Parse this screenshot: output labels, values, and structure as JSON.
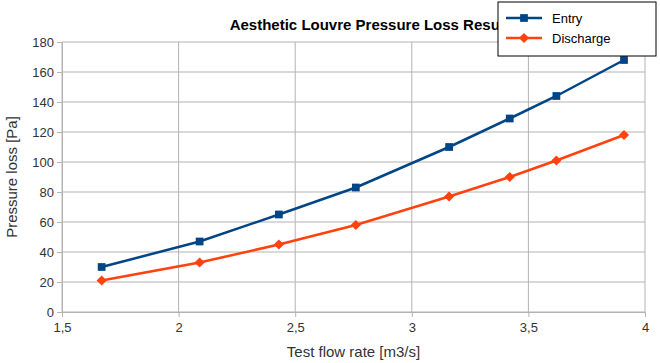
{
  "chart_data": {
    "type": "line",
    "title": "Aesthetic Louvre Pressure Loss Results",
    "x_label": "Test flow rate [m3/s]",
    "y_label": "Pressure loss [Pa]",
    "x": [
      1.67,
      2.09,
      2.43,
      2.76,
      3.16,
      3.42,
      3.62,
      3.91
    ],
    "series": [
      {
        "name": "Entry",
        "color": "#004586",
        "marker": "square",
        "line_style": "solid",
        "values": [
          30,
          47,
          65,
          83,
          110,
          129,
          144,
          168
        ]
      },
      {
        "name": "Discharge",
        "color": "#ff420e",
        "marker": "diamond",
        "line_style": "solid",
        "values": [
          21,
          33,
          45,
          58,
          77,
          90,
          101,
          118
        ]
      }
    ],
    "xlim": [
      1.5,
      4
    ],
    "xticks": [
      {
        "value": 1.5,
        "label": "1,5"
      },
      2,
      {
        "value": 2.5,
        "label": "2,5"
      },
      3,
      {
        "value": 3.5,
        "label": "3,5"
      },
      4
    ],
    "ylim": [
      0,
      180
    ],
    "yticks": [
      0,
      20,
      40,
      60,
      80,
      100,
      120,
      140,
      160,
      180
    ],
    "grid": true,
    "legend": "top-right"
  }
}
